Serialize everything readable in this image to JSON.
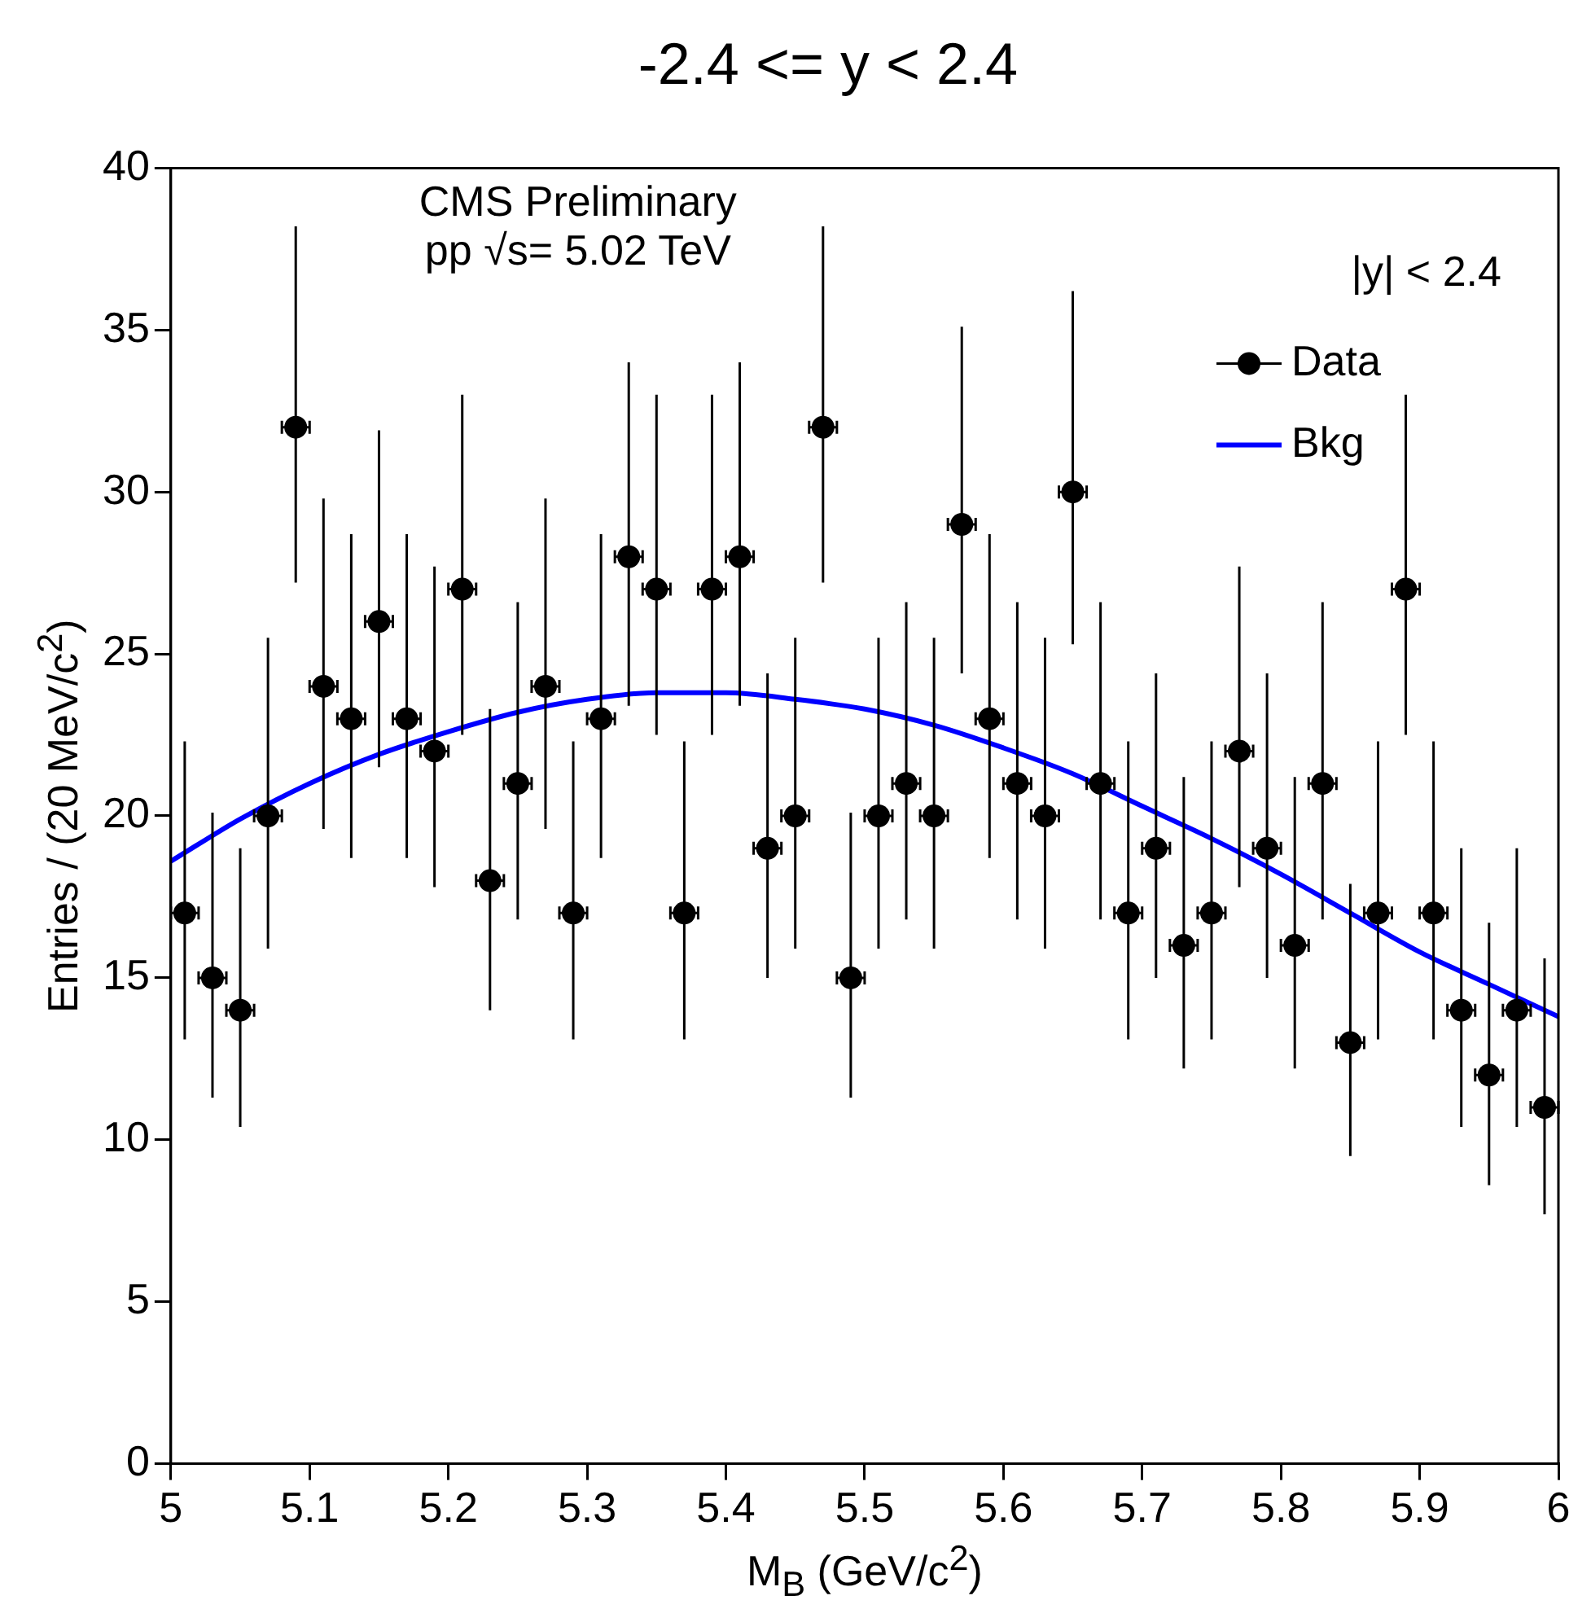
{
  "chart_data": {
    "type": "scatter",
    "title": "-2.4 <= y < 2.4",
    "xlabel": "M$_{B}$ (GeV/c$^{2}$)",
    "ylabel": "Entries / (20 MeV/c$^{2}$)",
    "annotations": [
      "CMS Preliminary",
      "pp √s= 5.02 TeV",
      "|y| < 2.4"
    ],
    "xlim": [
      5,
      6
    ],
    "xticks": [
      5,
      5.1,
      5.2,
      5.3,
      5.4,
      5.5,
      5.6,
      5.7,
      5.8,
      5.9,
      6
    ],
    "ylim": [
      0,
      40
    ],
    "yticks": [
      0,
      5,
      10,
      15,
      20,
      25,
      30,
      35,
      40
    ],
    "grid": false,
    "legend": "top right",
    "series": [
      {
        "name": "Data",
        "color": "#000000",
        "marker": "circle",
        "x": [
          5.01,
          5.03,
          5.05,
          5.07,
          5.09,
          5.11,
          5.13,
          5.15,
          5.17,
          5.19,
          5.21,
          5.23,
          5.25,
          5.27,
          5.29,
          5.31,
          5.33,
          5.35,
          5.37,
          5.39,
          5.41,
          5.43,
          5.45,
          5.47,
          5.49,
          5.51,
          5.53,
          5.55,
          5.57,
          5.59,
          5.61,
          5.63,
          5.65,
          5.67,
          5.69,
          5.71,
          5.73,
          5.75,
          5.77,
          5.79,
          5.81,
          5.83,
          5.85,
          5.87,
          5.89,
          5.91,
          5.93,
          5.95,
          5.97,
          5.99
        ],
        "values": [
          17,
          15,
          14,
          20,
          32,
          24,
          23,
          26,
          23,
          22,
          27,
          18,
          21,
          24,
          17,
          23,
          28,
          27,
          17,
          27,
          28,
          19,
          20,
          32,
          15,
          20,
          21,
          20,
          29,
          23,
          21,
          20,
          30,
          21,
          17,
          19,
          16,
          17,
          22,
          19,
          16,
          21,
          13,
          17,
          27,
          17,
          14,
          12,
          14,
          11
        ],
        "xerrors": [
          0.01,
          0.01,
          0.01,
          0.01,
          0.01,
          0.01,
          0.01,
          0.01,
          0.01,
          0.01,
          0.01,
          0.01,
          0.01,
          0.01,
          0.01,
          0.01,
          0.01,
          0.01,
          0.01,
          0.01,
          0.01,
          0.01,
          0.01,
          0.01,
          0.01,
          0.01,
          0.01,
          0.01,
          0.01,
          0.01,
          0.01,
          0.01,
          0.01,
          0.01,
          0.01,
          0.01,
          0.01,
          0.01,
          0.01,
          0.01,
          0.01,
          0.01,
          0.01,
          0.01,
          0.01,
          0.01,
          0.01,
          0.01,
          0.01,
          0.01
        ],
        "errors": [
          [
            13.1,
            22.3
          ],
          [
            11.3,
            20.1
          ],
          [
            10.4,
            19
          ],
          [
            15.9,
            25.5
          ],
          [
            27.2,
            38.2
          ],
          [
            19.6,
            29.8
          ],
          [
            18.7,
            28.7
          ],
          [
            21.5,
            31.9
          ],
          [
            18.7,
            28.7
          ],
          [
            17.8,
            27.7
          ],
          [
            22.5,
            33
          ],
          [
            14,
            23.3
          ],
          [
            16.8,
            26.6
          ],
          [
            19.6,
            29.8
          ],
          [
            13.1,
            22.3
          ],
          [
            18.7,
            28.7
          ],
          [
            23.4,
            34
          ],
          [
            22.5,
            33
          ],
          [
            13.1,
            22.3
          ],
          [
            22.5,
            33
          ],
          [
            23.4,
            34
          ],
          [
            15,
            24.4
          ],
          [
            15.9,
            25.5
          ],
          [
            27.2,
            38.2
          ],
          [
            11.3,
            20.1
          ],
          [
            15.9,
            25.5
          ],
          [
            16.8,
            26.6
          ],
          [
            15.9,
            25.5
          ],
          [
            24.4,
            35.1
          ],
          [
            18.7,
            28.7
          ],
          [
            16.8,
            26.6
          ],
          [
            15.9,
            25.5
          ],
          [
            25.3,
            36.2
          ],
          [
            16.8,
            26.6
          ],
          [
            13.1,
            22.3
          ],
          [
            15,
            24.4
          ],
          [
            12.2,
            21.2
          ],
          [
            13.1,
            22.3
          ],
          [
            17.8,
            27.7
          ],
          [
            15,
            24.4
          ],
          [
            12.2,
            21.2
          ],
          [
            16.8,
            26.6
          ],
          [
            9.5,
            17.9
          ],
          [
            13.1,
            22.3
          ],
          [
            22.5,
            33
          ],
          [
            13.1,
            22.3
          ],
          [
            10.4,
            19
          ],
          [
            8.6,
            16.7
          ],
          [
            10.4,
            19
          ],
          [
            7.7,
            15.6
          ]
        ]
      },
      {
        "name": "Bkg",
        "type": "line",
        "color": "#0000ff",
        "marker": "none",
        "x": [
          5,
          5.05,
          5.1,
          5.15,
          5.2,
          5.25,
          5.3,
          5.35,
          5.4,
          5.45,
          5.5,
          5.55,
          5.6,
          5.65,
          5.7,
          5.75,
          5.8,
          5.85,
          5.9,
          5.95,
          6
        ],
        "values": [
          18.6,
          19.9,
          21,
          21.9,
          22.6,
          23.2,
          23.6,
          23.8,
          23.8,
          23.6,
          23.3,
          22.8,
          22.1,
          21.3,
          20.3,
          19.3,
          18.2,
          17,
          15.8,
          14.8,
          13.8
        ]
      }
    ]
  }
}
